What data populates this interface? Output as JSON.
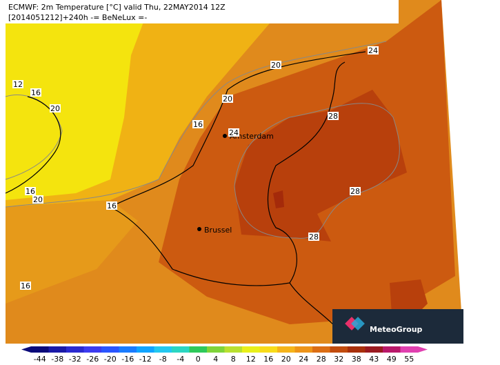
{
  "header": {
    "line1": "ECMWF: 2m Temperature [°C] valid Thu, 22MAY2014 12Z",
    "line2": "[2014051212]+240h -= BeNeLux =-"
  },
  "cities": [
    "Amsterdam",
    "Brussel"
  ],
  "contour_labels": [
    "12",
    "16",
    "20",
    "16",
    "24",
    "20",
    "20",
    "24",
    "28",
    "28",
    "28",
    "16",
    "20",
    "16",
    "16"
  ],
  "logo": "MeteoGroup",
  "colorbar": {
    "ticks": [
      -44,
      -38,
      -32,
      -26,
      -20,
      -16,
      -12,
      -8,
      -4,
      0,
      4,
      8,
      12,
      16,
      20,
      24,
      28,
      32,
      38,
      43,
      49,
      55
    ],
    "colors": [
      "#0a0a7a",
      "#1a1aa8",
      "#2a2ad0",
      "#3b3bf0",
      "#2a55ff",
      "#1a7cff",
      "#10a4ff",
      "#22c8f0",
      "#2ad6c2",
      "#2ec95a",
      "#7fd43a",
      "#b8e030",
      "#e8f01a",
      "#f8dc1a",
      "#f5b41a",
      "#ee9418",
      "#dc6e14",
      "#c24c0e",
      "#a8300c",
      "#9a1a20",
      "#b8186a",
      "#e040b0"
    ]
  }
}
